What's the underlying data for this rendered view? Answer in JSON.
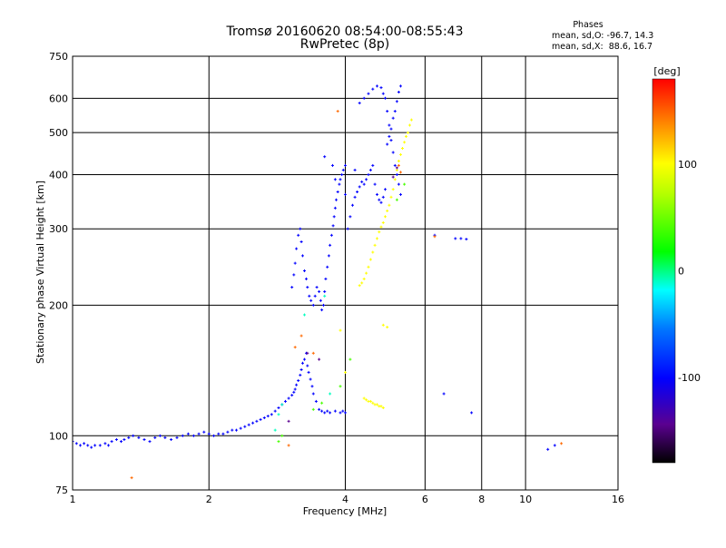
{
  "chart_data": {
    "type": "scatter",
    "title": "Tromsø 20160620 08:54:00-08:55:43",
    "subtitle": "RwPretec (8p)",
    "xlabel": "Frequency [MHz]",
    "ylabel": "Stationary phase Virtual Height [km]",
    "xscale": "log",
    "yscale": "log",
    "xlim": [
      1,
      16
    ],
    "ylim": [
      75,
      750
    ],
    "xticks": [
      1,
      2,
      4,
      6,
      8,
      10,
      16
    ],
    "xtick_labels": [
      "1",
      "2",
      "4",
      "6",
      "8",
      "10",
      "16"
    ],
    "yticks": [
      75,
      100,
      200,
      300,
      400,
      500,
      600,
      750
    ],
    "ytick_labels": [
      "75",
      "100",
      "200",
      "300",
      "400",
      "500",
      "600",
      "750"
    ],
    "grid": true,
    "phase_box": {
      "heading": "Phases",
      "line_o": "mean, sd,O: -96.7, 14.3",
      "line_x": "mean, sd,X:  88.6, 16.7"
    },
    "colorbar": {
      "label": "[deg]",
      "range": [
        -180,
        180
      ],
      "ticks": [
        100,
        0,
        -100
      ],
      "tick_labels": [
        "100",
        "0",
        "-100"
      ]
    },
    "series": [
      {
        "phase": -100,
        "points": [
          [
            1.0,
            97
          ],
          [
            1.02,
            96
          ],
          [
            1.04,
            95
          ],
          [
            1.06,
            96
          ],
          [
            1.08,
            95
          ],
          [
            1.1,
            94
          ],
          [
            1.12,
            95
          ],
          [
            1.15,
            95
          ],
          [
            1.18,
            96
          ],
          [
            1.2,
            95
          ],
          [
            1.22,
            97
          ],
          [
            1.25,
            98
          ],
          [
            1.28,
            97
          ],
          [
            1.3,
            98
          ],
          [
            1.33,
            99
          ],
          [
            1.36,
            100
          ],
          [
            1.4,
            99
          ],
          [
            1.44,
            98
          ],
          [
            1.48,
            97
          ],
          [
            1.52,
            99
          ],
          [
            1.56,
            100
          ],
          [
            1.6,
            99
          ],
          [
            1.65,
            98
          ],
          [
            1.7,
            99
          ],
          [
            1.75,
            100
          ],
          [
            1.8,
            101
          ],
          [
            1.85,
            100
          ],
          [
            1.9,
            101
          ],
          [
            1.95,
            102
          ],
          [
            2.0,
            101
          ],
          [
            2.05,
            100
          ],
          [
            2.1,
            101
          ],
          [
            2.15,
            101
          ],
          [
            2.2,
            102
          ],
          [
            2.25,
            103
          ],
          [
            2.3,
            103
          ],
          [
            2.35,
            104
          ],
          [
            2.4,
            105
          ],
          [
            2.45,
            106
          ],
          [
            2.5,
            107
          ],
          [
            2.55,
            108
          ],
          [
            2.6,
            109
          ],
          [
            2.65,
            110
          ],
          [
            2.7,
            111
          ],
          [
            2.75,
            112
          ],
          [
            2.8,
            114
          ],
          [
            2.85,
            116
          ],
          [
            2.9,
            118
          ],
          [
            2.95,
            120
          ],
          [
            3.0,
            122
          ],
          [
            3.05,
            124
          ],
          [
            3.08,
            126
          ],
          [
            3.1,
            128
          ],
          [
            3.12,
            131
          ],
          [
            3.15,
            134
          ],
          [
            3.18,
            138
          ],
          [
            3.2,
            142
          ],
          [
            3.22,
            147
          ],
          [
            3.25,
            150
          ],
          [
            3.28,
            155
          ],
          [
            3.3,
            145
          ],
          [
            3.32,
            140
          ],
          [
            3.35,
            135
          ],
          [
            3.38,
            130
          ],
          [
            3.4,
            125
          ],
          [
            3.45,
            120
          ],
          [
            3.5,
            115
          ],
          [
            3.55,
            114
          ],
          [
            3.6,
            113
          ],
          [
            3.65,
            114
          ],
          [
            3.7,
            113
          ],
          [
            3.8,
            114
          ],
          [
            3.9,
            113
          ],
          [
            3.95,
            114
          ],
          [
            4.0,
            113
          ],
          [
            3.05,
            220
          ],
          [
            3.08,
            235
          ],
          [
            3.1,
            250
          ],
          [
            3.12,
            270
          ],
          [
            3.15,
            290
          ],
          [
            3.18,
            300
          ],
          [
            3.2,
            280
          ],
          [
            3.22,
            260
          ],
          [
            3.25,
            240
          ],
          [
            3.28,
            230
          ],
          [
            3.3,
            220
          ],
          [
            3.33,
            210
          ],
          [
            3.36,
            205
          ],
          [
            3.4,
            200
          ],
          [
            3.43,
            210
          ],
          [
            3.46,
            220
          ],
          [
            3.5,
            215
          ],
          [
            3.53,
            205
          ],
          [
            3.55,
            195
          ],
          [
            3.58,
            200
          ],
          [
            3.6,
            215
          ],
          [
            3.62,
            230
          ],
          [
            3.65,
            245
          ],
          [
            3.68,
            260
          ],
          [
            3.7,
            275
          ],
          [
            3.73,
            290
          ],
          [
            3.76,
            305
          ],
          [
            3.78,
            320
          ],
          [
            3.8,
            335
          ],
          [
            3.82,
            350
          ],
          [
            3.85,
            365
          ],
          [
            3.88,
            380
          ],
          [
            3.9,
            390
          ],
          [
            3.93,
            400
          ],
          [
            3.96,
            410
          ],
          [
            4.0,
            420
          ],
          [
            4.05,
            300
          ],
          [
            4.1,
            320
          ],
          [
            4.15,
            340
          ],
          [
            4.2,
            355
          ],
          [
            4.25,
            365
          ],
          [
            4.3,
            375
          ],
          [
            4.35,
            385
          ],
          [
            4.4,
            380
          ],
          [
            4.45,
            390
          ],
          [
            4.5,
            400
          ],
          [
            4.55,
            410
          ],
          [
            4.6,
            420
          ],
          [
            4.65,
            380
          ],
          [
            4.7,
            360
          ],
          [
            4.75,
            350
          ],
          [
            4.8,
            345
          ],
          [
            4.85,
            355
          ],
          [
            4.9,
            370
          ],
          [
            4.3,
            585
          ],
          [
            4.4,
            600
          ],
          [
            4.5,
            615
          ],
          [
            4.6,
            630
          ],
          [
            4.7,
            640
          ],
          [
            4.8,
            635
          ],
          [
            4.85,
            615
          ],
          [
            4.9,
            600
          ],
          [
            4.95,
            560
          ],
          [
            5.0,
            520
          ],
          [
            5.05,
            480
          ],
          [
            5.1,
            450
          ],
          [
            5.15,
            420
          ],
          [
            5.2,
            400
          ],
          [
            5.25,
            380
          ],
          [
            5.3,
            360
          ],
          [
            5.3,
            640
          ],
          [
            5.25,
            620
          ],
          [
            5.2,
            590
          ],
          [
            5.15,
            560
          ],
          [
            5.1,
            540
          ],
          [
            5.05,
            510
          ],
          [
            5.0,
            490
          ],
          [
            4.95,
            470
          ],
          [
            3.6,
            440
          ],
          [
            3.75,
            420
          ],
          [
            3.8,
            390
          ],
          [
            4.0,
            360
          ],
          [
            4.2,
            410
          ],
          [
            7.0,
            285
          ],
          [
            7.2,
            285
          ],
          [
            7.4,
            284
          ],
          [
            6.3,
            290
          ],
          [
            6.6,
            125
          ],
          [
            7.6,
            113
          ],
          [
            11.2,
            93
          ],
          [
            11.6,
            95
          ]
        ]
      },
      {
        "phase": 100,
        "points": [
          [
            4.3,
            222
          ],
          [
            4.35,
            225
          ],
          [
            4.4,
            230
          ],
          [
            4.45,
            237
          ],
          [
            4.5,
            245
          ],
          [
            4.55,
            255
          ],
          [
            4.6,
            265
          ],
          [
            4.65,
            275
          ],
          [
            4.7,
            285
          ],
          [
            4.75,
            295
          ],
          [
            4.8,
            303
          ],
          [
            4.85,
            310
          ],
          [
            4.9,
            320
          ],
          [
            4.95,
            330
          ],
          [
            5.0,
            340
          ],
          [
            5.05,
            355
          ],
          [
            5.1,
            370
          ],
          [
            5.15,
            390
          ],
          [
            5.2,
            410
          ],
          [
            5.25,
            430
          ],
          [
            5.3,
            445
          ],
          [
            5.35,
            460
          ],
          [
            5.4,
            475
          ],
          [
            5.45,
            490
          ],
          [
            5.5,
            500
          ],
          [
            5.55,
            520
          ],
          [
            5.6,
            535
          ],
          [
            4.4,
            122
          ],
          [
            4.45,
            121
          ],
          [
            4.5,
            120
          ],
          [
            4.55,
            120
          ],
          [
            4.6,
            119
          ],
          [
            4.65,
            118
          ],
          [
            4.7,
            118
          ],
          [
            4.75,
            117
          ],
          [
            4.8,
            117
          ],
          [
            4.85,
            116
          ],
          [
            4.85,
            180
          ],
          [
            4.95,
            178
          ],
          [
            4.0,
            140
          ],
          [
            3.9,
            175
          ]
        ]
      },
      {
        "phase": 40,
        "points": [
          [
            2.85,
            97
          ],
          [
            2.9,
            100
          ],
          [
            3.4,
            115
          ],
          [
            3.55,
            119
          ],
          [
            3.9,
            130
          ],
          [
            4.1,
            150
          ],
          [
            5.2,
            350
          ],
          [
            5.4,
            380
          ]
        ]
      },
      {
        "phase": -10,
        "points": [
          [
            2.8,
            103
          ],
          [
            2.85,
            112
          ],
          [
            2.9,
            118
          ],
          [
            3.25,
            190
          ],
          [
            3.6,
            210
          ],
          [
            3.7,
            125
          ]
        ]
      },
      {
        "phase": 150,
        "points": [
          [
            1.35,
            80
          ],
          [
            3.0,
            95
          ],
          [
            3.1,
            160
          ],
          [
            3.2,
            170
          ],
          [
            3.4,
            155
          ],
          [
            3.85,
            560
          ],
          [
            6.3,
            288
          ],
          [
            12.0,
            96
          ],
          [
            5.25,
            420
          ],
          [
            5.3,
            405
          ]
        ]
      },
      {
        "phase": -150,
        "points": [
          [
            3.0,
            108
          ],
          [
            3.3,
            155
          ],
          [
            3.5,
            150
          ],
          [
            5.1,
            395
          ],
          [
            5.2,
            415
          ]
        ]
      }
    ]
  }
}
